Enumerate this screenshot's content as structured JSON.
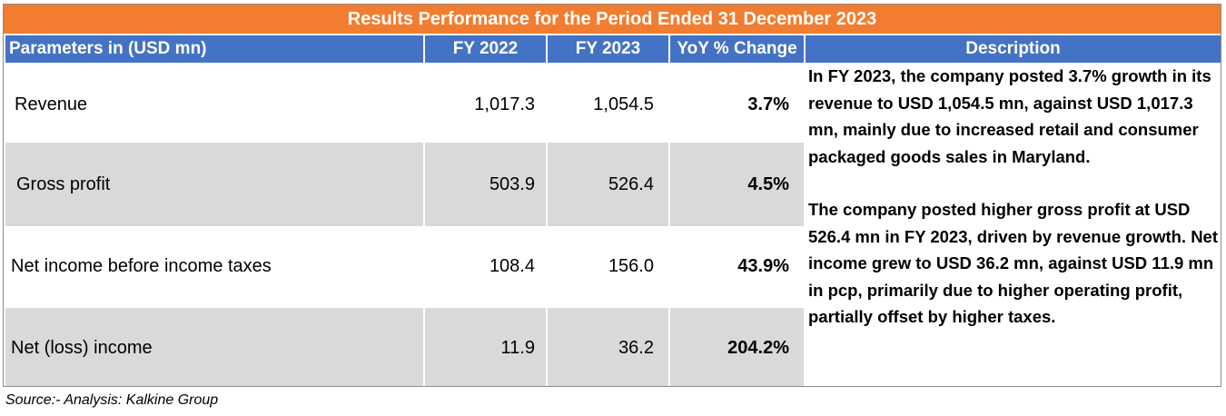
{
  "title": "Results Performance for the Period Ended 31 December 2023",
  "headers": {
    "parameters": "Parameters in (USD mn)",
    "fy2022": "FY 2022",
    "fy2023": "FY 2023",
    "yoy": "YoY % Change",
    "description": "Description"
  },
  "rows": [
    {
      "name": "Revenue",
      "fy2022": "1,017.3",
      "fy2023": "1,054.5",
      "yoy": "3.7%"
    },
    {
      "name": "Gross profit",
      "fy2022": "503.9",
      "fy2023": "526.4",
      "yoy": "4.5%"
    },
    {
      "name": "Net income before income taxes",
      "fy2022": "108.4",
      "fy2023": "156.0",
      "yoy": "43.9%"
    },
    {
      "name": "Net (loss) income",
      "fy2022": "11.9",
      "fy2023": "36.2",
      "yoy": "204.2%"
    }
  ],
  "description": [
    "In FY 2023, the company posted 3.7% growth in its revenue to USD 1,054.5 mn, against USD 1,017.3 mn, mainly due to increased retail and consumer packaged goods sales in Maryland.",
    "The company posted higher gross profit at USD 526.4 mn in FY 2023, driven by revenue growth. Net income grew to USD 36.2 mn, against USD 11.9 mn in pcp, primarily due to higher operating profit, partially offset by higher taxes."
  ],
  "source": "Source:- Analysis: Kalkine Group",
  "colors": {
    "title_bg": "#f27d30",
    "header_bg": "#4472c4",
    "shaded_row": "#d9d9d9"
  }
}
